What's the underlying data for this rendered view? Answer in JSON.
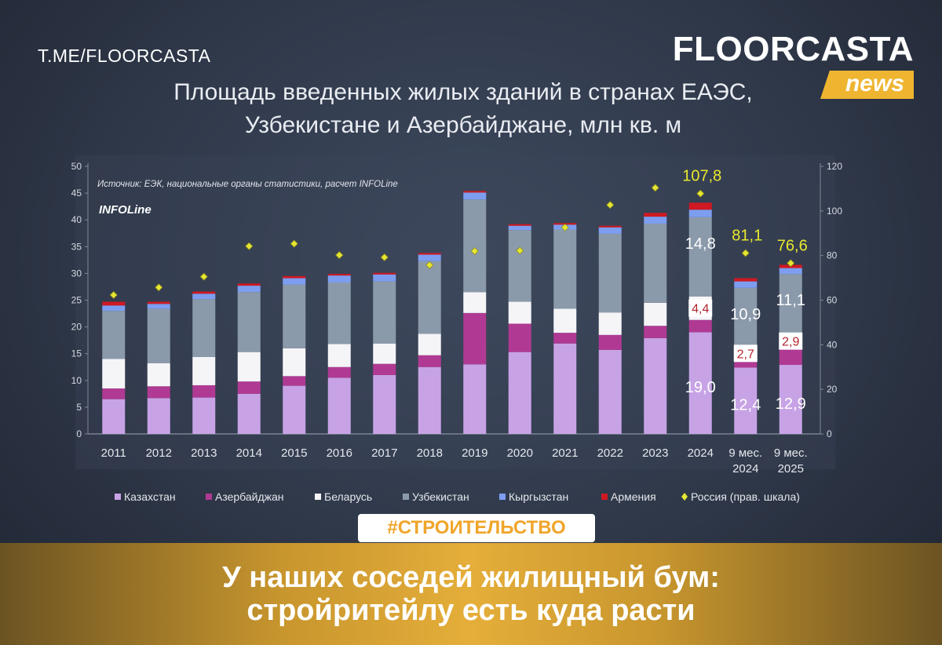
{
  "header": {
    "telegram_link": "T.ME/FLOORCASTA",
    "logo_word": "FLOORCASTA",
    "logo_tag": "news"
  },
  "chart_data": {
    "type": "bar",
    "title_lines": [
      "Площадь введенных жилых зданий в странах ЕАЭС,",
      "Узбекистане и Азербайджане, млн кв. м"
    ],
    "source_note": "Источник: ЕЭК, национальные органы статистики, расчет INFOLine",
    "brand_mark": "INFOLine",
    "categories": [
      "2011",
      "2012",
      "2013",
      "2014",
      "2015",
      "2016",
      "2017",
      "2018",
      "2019",
      "2020",
      "2021",
      "2022",
      "2023",
      "2024",
      "9 мес.\n2024",
      "9 мес.\n2025"
    ],
    "ylim": [
      0,
      50
    ],
    "yticks": [
      0,
      5,
      10,
      15,
      20,
      25,
      30,
      35,
      40,
      45,
      50
    ],
    "y2lim": [
      0,
      120
    ],
    "y2ticks": [
      0,
      20,
      40,
      60,
      80,
      100,
      120
    ],
    "series": [
      {
        "name": "Казахстан",
        "color": "#c7a3e6",
        "axis": "left",
        "values": [
          6.5,
          6.7,
          6.8,
          7.5,
          9.0,
          10.5,
          11.0,
          12.5,
          13.0,
          15.3,
          16.9,
          15.7,
          17.9,
          19.0,
          12.4,
          12.9
        ]
      },
      {
        "name": "Азербайджан",
        "color": "#b03a93",
        "axis": "left",
        "values": [
          2.0,
          2.2,
          2.3,
          2.3,
          1.8,
          2.0,
          2.1,
          2.2,
          9.6,
          5.3,
          2.0,
          2.8,
          2.3,
          2.3,
          1.3,
          3.0
        ]
      },
      {
        "name": "Беларусь",
        "color": "#f5f5f8",
        "axis": "left",
        "values": [
          5.5,
          4.3,
          5.3,
          5.5,
          5.2,
          4.3,
          3.8,
          4.0,
          3.9,
          4.1,
          4.5,
          4.2,
          4.3,
          4.4,
          2.7,
          2.9
        ]
      },
      {
        "name": "Узбекистан",
        "color": "#8b9aab",
        "axis": "left",
        "values": [
          9.0,
          10.2,
          10.8,
          11.2,
          11.9,
          11.5,
          11.6,
          13.6,
          17.3,
          13.4,
          14.8,
          14.7,
          14.8,
          14.8,
          10.9,
          11.1
        ]
      },
      {
        "name": "Кыргызстан",
        "color": "#7d9ef0",
        "axis": "left",
        "values": [
          1.0,
          0.9,
          1.0,
          1.2,
          1.2,
          1.3,
          1.3,
          1.2,
          1.3,
          0.8,
          0.9,
          1.2,
          1.3,
          1.4,
          1.2,
          1.1
        ]
      },
      {
        "name": "Армения",
        "color": "#d01922",
        "axis": "left",
        "values": [
          0.7,
          0.4,
          0.4,
          0.4,
          0.4,
          0.3,
          0.3,
          0.3,
          0.3,
          0.3,
          0.3,
          0.3,
          0.7,
          1.3,
          0.6,
          0.6
        ]
      },
      {
        "name": "Россия (прав. шкала)",
        "color": "#e6e632",
        "axis": "right",
        "marker": "diamond",
        "values": [
          62.3,
          65.7,
          70.5,
          84.2,
          85.3,
          80.2,
          79.2,
          75.7,
          82.0,
          82.2,
          92.6,
          102.7,
          110.4,
          107.8,
          81.1,
          76.6
        ]
      }
    ],
    "data_labels": [
      {
        "category": "2024",
        "series": "Россия (прав. шкала)",
        "text": "107,8"
      },
      {
        "category": "9 мес.\n2024",
        "series": "Россия (прав. шкала)",
        "text": "81,1"
      },
      {
        "category": "9 мес.\n2025",
        "series": "Россия (прав. шкала)",
        "text": "76,6"
      },
      {
        "category": "2024",
        "series": "Узбекистан",
        "text": "14,8"
      },
      {
        "category": "2024",
        "series": "Беларусь",
        "text": "4,4"
      },
      {
        "category": "2024",
        "series": "Казахстан",
        "text": "19,0"
      },
      {
        "category": "9 мес.\n2024",
        "series": "Узбекистан",
        "text": "10,9"
      },
      {
        "category": "9 мес.\n2024",
        "series": "Беларусь",
        "text": "2,7"
      },
      {
        "category": "9 мес.\n2024",
        "series": "Казахстан",
        "text": "12,4"
      },
      {
        "category": "9 мес.\n2025",
        "series": "Узбекистан",
        "text": "11,1"
      },
      {
        "category": "9 мес.\n2025",
        "series": "Беларусь",
        "text": "2,9"
      },
      {
        "category": "9 мес.\n2025",
        "series": "Казахстан",
        "text": "12,9"
      }
    ],
    "legend_position": "bottom",
    "grid": false
  },
  "footer": {
    "hashtag": "#СТРОИТЕЛЬСТВО",
    "headline_lines": [
      "У наших соседей жилищный бум:",
      "стройритейлу есть куда расти"
    ]
  }
}
